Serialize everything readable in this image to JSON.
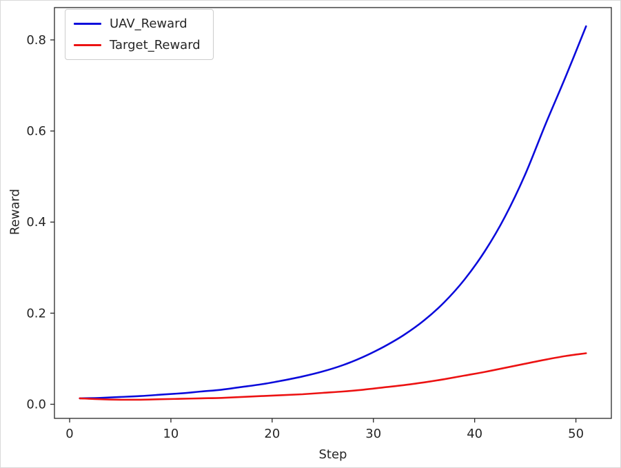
{
  "chart_data": {
    "type": "line",
    "title": "",
    "xlabel": "Step",
    "ylabel": "Reward",
    "xlim": [
      -1.5,
      53.5
    ],
    "ylim": [
      -0.031,
      0.871
    ],
    "x_ticks": [
      0,
      10,
      20,
      30,
      40,
      50
    ],
    "y_ticks": [
      0.0,
      0.2,
      0.4,
      0.6,
      0.8
    ],
    "grid": false,
    "legend_position": "upper left",
    "axis_color": "#262626",
    "series": [
      {
        "name": "UAV_Reward",
        "color": "#0b0bdb",
        "x": [
          1,
          3,
          5,
          7,
          9,
          11,
          13,
          15,
          17,
          19,
          21,
          23,
          25,
          27,
          29,
          31,
          33,
          35,
          37,
          39,
          41,
          43,
          45,
          47,
          49,
          51
        ],
        "y": [
          0.013,
          0.014,
          0.016,
          0.018,
          0.021,
          0.024,
          0.028,
          0.032,
          0.038,
          0.044,
          0.052,
          0.061,
          0.072,
          0.086,
          0.104,
          0.126,
          0.152,
          0.184,
          0.224,
          0.274,
          0.336,
          0.412,
          0.505,
          0.615,
          0.72,
          0.83
        ]
      },
      {
        "name": "Target_Reward",
        "color": "#ec1212",
        "x": [
          1,
          3,
          5,
          7,
          9,
          11,
          13,
          15,
          17,
          19,
          21,
          23,
          25,
          27,
          29,
          31,
          33,
          35,
          37,
          39,
          41,
          43,
          45,
          47,
          49,
          51
        ],
        "y": [
          0.013,
          0.011,
          0.01,
          0.01,
          0.011,
          0.012,
          0.013,
          0.014,
          0.016,
          0.018,
          0.02,
          0.022,
          0.025,
          0.028,
          0.032,
          0.037,
          0.042,
          0.048,
          0.055,
          0.063,
          0.071,
          0.08,
          0.089,
          0.098,
          0.106,
          0.112
        ]
      }
    ]
  }
}
